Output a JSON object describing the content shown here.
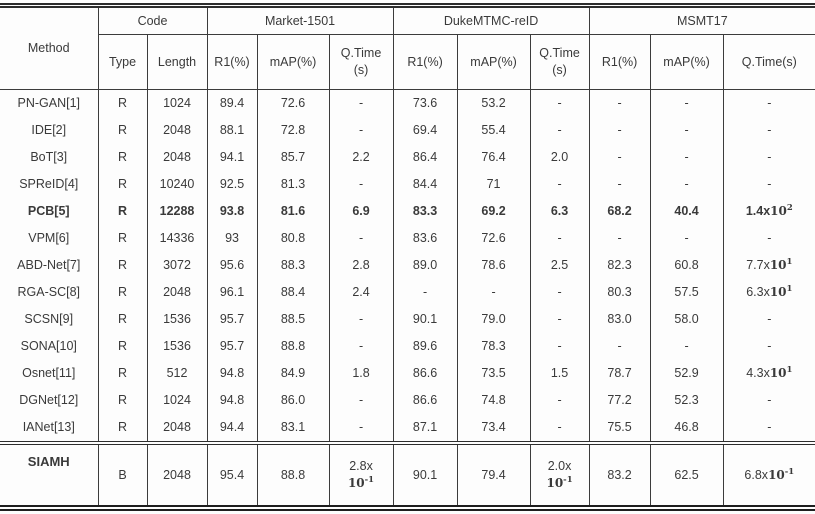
{
  "table": {
    "header": {
      "method_label": "Method",
      "groups": [
        {
          "label": "Code",
          "cols": [
            "Type",
            "Length"
          ]
        },
        {
          "label": "Market-1501",
          "cols": [
            "R1(%)",
            "mAP(%)",
            "Q.Time|(s)"
          ]
        },
        {
          "label": "DukeMTMC-reID",
          "cols": [
            "R1(%)",
            "mAP(%)",
            "Q.Time|(s)"
          ]
        },
        {
          "label": "MSMT17",
          "cols": [
            "R1(%)",
            "mAP(%)",
            "Q.Time(s)"
          ]
        }
      ]
    },
    "rows": [
      {
        "method": "PN-GAN[1]",
        "bold": false,
        "cells": [
          "R",
          "1024",
          "89.4",
          "72.6",
          "-",
          "73.6",
          "53.2",
          "-",
          "-",
          "-",
          "-"
        ]
      },
      {
        "method": "IDE[2]",
        "bold": false,
        "cells": [
          "R",
          "2048",
          "88.1",
          "72.8",
          "-",
          "69.4",
          "55.4",
          "-",
          "-",
          "-",
          "-"
        ]
      },
      {
        "method": "BoT[3]",
        "bold": false,
        "cells": [
          "R",
          "2048",
          "94.1",
          "85.7",
          "2.2",
          "86.4",
          "76.4",
          "2.0",
          "-",
          "-",
          "-"
        ]
      },
      {
        "method": "SPReID[4]",
        "bold": false,
        "cells": [
          "R",
          "10240",
          "92.5",
          "81.3",
          "-",
          "84.4",
          "71",
          "-",
          "-",
          "-",
          "-"
        ]
      },
      {
        "method": "PCB[5]",
        "bold": true,
        "cells": [
          "R",
          "12288",
          "93.8",
          "81.6",
          "6.9",
          "83.3",
          "69.2",
          "6.3",
          "68.2",
          "40.4",
          "1.4x10^2"
        ]
      },
      {
        "method": "VPM[6]",
        "bold": false,
        "cells": [
          "R",
          "14336",
          "93",
          "80.8",
          "-",
          "83.6",
          "72.6",
          "-",
          "-",
          "-",
          "-"
        ]
      },
      {
        "method": "ABD-Net[7]",
        "bold": false,
        "cells": [
          "R",
          "3072",
          "95.6",
          "88.3",
          "2.8",
          "89.0",
          "78.6",
          "2.5",
          "82.3",
          "60.8",
          "7.7x10^1"
        ]
      },
      {
        "method": "RGA-SC[8]",
        "bold": false,
        "cells": [
          "R",
          "2048",
          "96.1",
          "88.4",
          "2.4",
          "-",
          "-",
          "-",
          "80.3",
          "57.5",
          "6.3x10^1"
        ]
      },
      {
        "method": "SCSN[9]",
        "bold": false,
        "cells": [
          "R",
          "1536",
          "95.7",
          "88.5",
          "-",
          "90.1",
          "79.0",
          "-",
          "83.0",
          "58.0",
          "-"
        ]
      },
      {
        "method": "SONA[10]",
        "bold": false,
        "cells": [
          "R",
          "1536",
          "95.7",
          "88.8",
          "-",
          "89.6",
          "78.3",
          "-",
          "-",
          "-",
          "-"
        ]
      },
      {
        "method": "Osnet[11]",
        "bold": false,
        "cells": [
          "R",
          "512",
          "94.8",
          "84.9",
          "1.8",
          "86.6",
          "73.5",
          "1.5",
          "78.7",
          "52.9",
          "4.3x10^1"
        ]
      },
      {
        "method": "DGNet[12]",
        "bold": false,
        "cells": [
          "R",
          "1024",
          "94.8",
          "86.0",
          "-",
          "86.6",
          "74.8",
          "-",
          "77.2",
          "52.3",
          "-"
        ]
      },
      {
        "method": "IANet[13]",
        "bold": false,
        "cells": [
          "R",
          "2048",
          "94.4",
          "83.1",
          "-",
          "87.1",
          "73.4",
          "-",
          "75.5",
          "46.8",
          "-"
        ]
      }
    ],
    "footer_row": {
      "method": "SIAMH",
      "cells": [
        "B",
        "2048",
        "95.4",
        "88.8",
        "2.8x|10^-1",
        "90.1",
        "79.4",
        "2.0x|10^-1",
        "83.2",
        "62.5",
        "6.8x10^-1"
      ]
    },
    "colors": {
      "text": "#3a3a3a",
      "border": "#3c3c3c",
      "background": "#ffffff"
    }
  }
}
